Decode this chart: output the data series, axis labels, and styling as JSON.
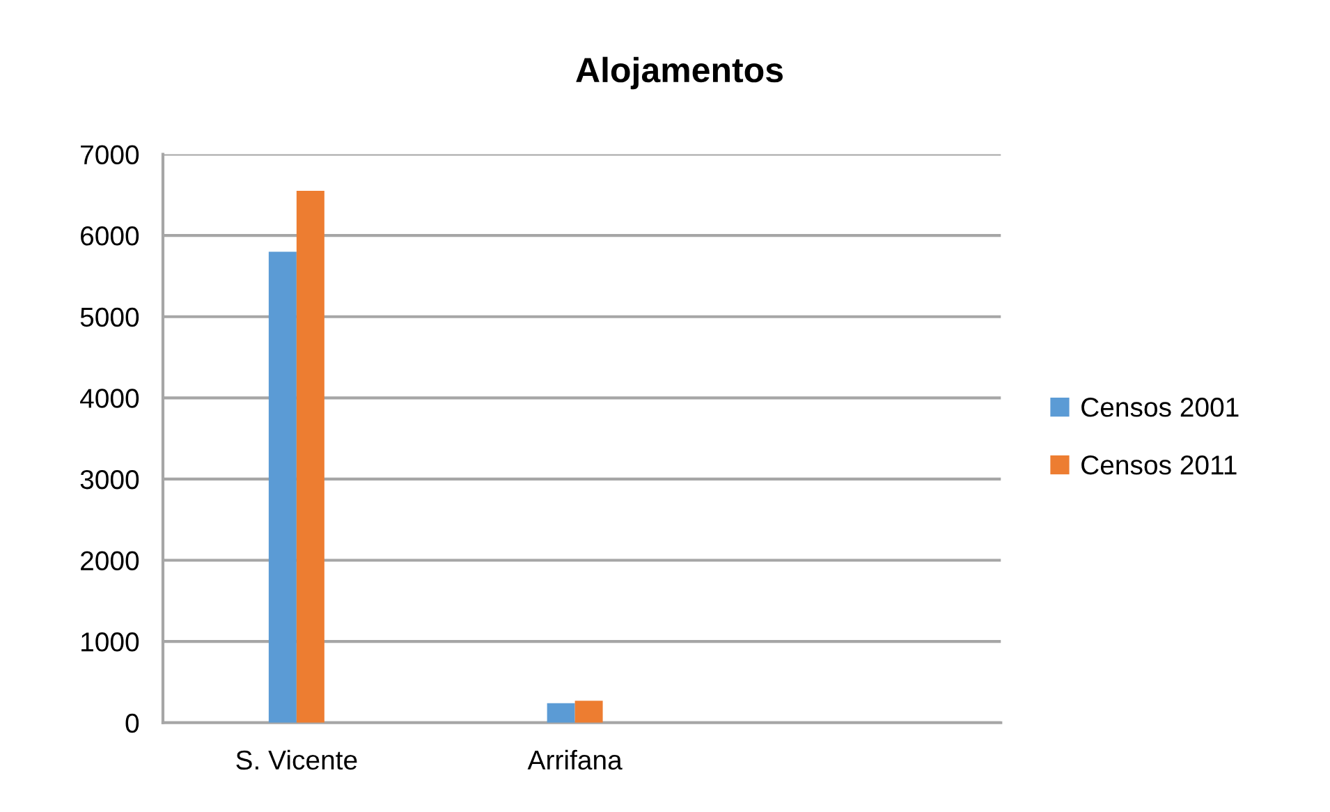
{
  "chart_data": {
    "type": "bar",
    "title": "Alojamentos",
    "categories": [
      "S. Vicente",
      "Arrifana",
      null
    ],
    "series": [
      {
        "name": "Censos 2001",
        "color": "#5b9bd5",
        "values": [
          5800,
          240,
          null
        ]
      },
      {
        "name": "Censos 2011",
        "color": "#ed7d31",
        "values": [
          6550,
          270,
          null
        ]
      }
    ],
    "ylim": [
      0,
      7000
    ],
    "yticks": [
      0,
      1000,
      2000,
      3000,
      4000,
      5000,
      6000,
      7000
    ],
    "grid": "y",
    "legend": "right"
  }
}
